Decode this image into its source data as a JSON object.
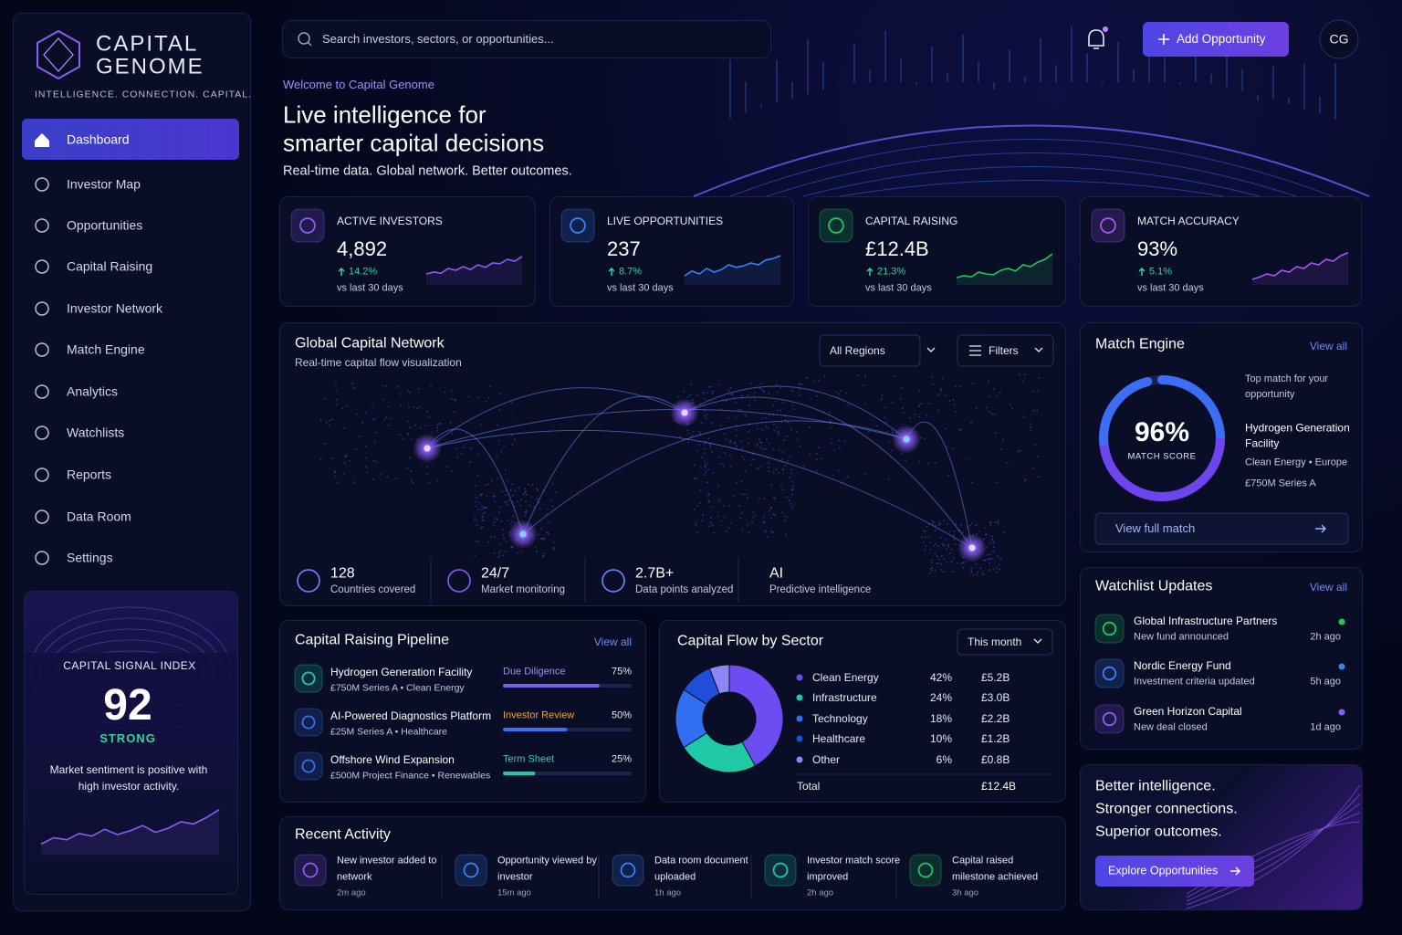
{
  "brand": {
    "name_top": "CAPITAL",
    "name_bottom": "GENOME",
    "tagline": "INTELLIGENCE. CONNECTION. CAPITAL."
  },
  "nav": [
    {
      "label": "Dashboard",
      "active": true
    },
    {
      "label": "Investor Map",
      "active": false
    },
    {
      "label": "Opportunities",
      "active": false
    },
    {
      "label": "Capital Raising",
      "active": false
    },
    {
      "label": "Investor Network",
      "active": false
    },
    {
      "label": "Match Engine",
      "active": false
    },
    {
      "label": "Analytics",
      "active": false
    },
    {
      "label": "Watchlists",
      "active": false
    },
    {
      "label": "Reports",
      "active": false
    },
    {
      "label": "Data Room",
      "active": false
    },
    {
      "label": "Settings",
      "active": false
    }
  ],
  "signal_index": {
    "title": "CAPITAL SIGNAL INDEX",
    "value": "92",
    "status": "STRONG",
    "text": "Market sentiment is positive with high investor activity.",
    "trend": [
      20,
      32,
      28,
      40,
      35,
      48,
      38,
      45,
      55,
      42,
      50,
      62,
      58,
      70,
      85
    ]
  },
  "top_bar": {
    "search_placeholder": "Search investors, sectors, or opportunities...",
    "add_button": "Add Opportunity",
    "avatar": "CG"
  },
  "hero": {
    "kicker": "Welcome to Capital Genome",
    "title_top": "Live intelligence for",
    "title_bottom": "smarter capital decisions",
    "subtitle": "Real-time data. Global network. Better outcomes."
  },
  "kpis": [
    {
      "label": "ACTIVE INVESTORS",
      "value": "4,892",
      "change": "14.2%",
      "period": "vs last 30 days",
      "color": "#8b5cf6",
      "trend": [
        30,
        35,
        32,
        45,
        40,
        50,
        42,
        55,
        48,
        60,
        58,
        70,
        65,
        78
      ]
    },
    {
      "label": "LIVE OPPORTUNITIES",
      "value": "237",
      "change": "8.7%",
      "period": "vs last 30 days",
      "color": "#3b82f6",
      "trend": [
        25,
        38,
        30,
        45,
        35,
        42,
        55,
        48,
        52,
        60,
        55,
        68,
        72,
        80
      ]
    },
    {
      "label": "CAPITAL RAISING",
      "value": "£12.4B",
      "change": "21.3%",
      "period": "vs last 30 days",
      "color": "#22c55e",
      "trend": [
        20,
        25,
        22,
        35,
        30,
        28,
        40,
        45,
        38,
        55,
        50,
        62,
        70,
        85
      ]
    },
    {
      "label": "MATCH ACCURACY",
      "value": "93%",
      "change": "5.1%",
      "period": "vs last 30 days",
      "color": "#a855f7",
      "trend": [
        15,
        22,
        30,
        25,
        40,
        35,
        50,
        45,
        60,
        55,
        70,
        65,
        80,
        88
      ]
    }
  ],
  "network": {
    "title": "Global Capital Network",
    "subtitle": "Real-time capital flow visualization",
    "region_filter": "All Regions",
    "filters": "Filters",
    "stats": [
      {
        "value": "128",
        "label": "Countries covered"
      },
      {
        "value": "24/7",
        "label": "Market monitoring"
      },
      {
        "value": "2.7B+",
        "label": "Data points analyzed"
      },
      {
        "value": "AI",
        "label": "Predictive intelligence"
      }
    ]
  },
  "match_engine": {
    "title": "Match Engine",
    "view_all": "View all",
    "score": 96,
    "score_label": "96%",
    "score_caption": "MATCH SCORE",
    "intro": "Top match for your opportunity",
    "match_name": "Hydrogen Generation Facility",
    "match_sector": "Clean Energy • Europe",
    "match_round": "£750M Series A",
    "button": "View full match"
  },
  "watchlist": {
    "title": "Watchlist Updates",
    "view_all": "View all",
    "items": [
      {
        "name": "Global Infrastructure Partners",
        "detail": "New fund announced",
        "time": "2h ago",
        "color": "#22c55e"
      },
      {
        "name": "Nordic Energy Fund",
        "detail": "Investment criteria updated",
        "time": "5h ago",
        "color": "#3b82f6"
      },
      {
        "name": "Green Horizon Capital",
        "detail": "New deal closed",
        "time": "1d ago",
        "color": "#8b5cf6"
      }
    ]
  },
  "pipeline": {
    "title": "Capital Raising Pipeline",
    "view_all": "View all",
    "items": [
      {
        "name": "Hydrogen Generation Facility",
        "detail": "£750M Series A • Clean Energy",
        "stage": "Due Diligence",
        "stage_color": "#a78bfa",
        "progress": 75,
        "progress_label": "75%",
        "color": "#7c5cf5"
      },
      {
        "name": "AI-Powered Diagnostics Platform",
        "detail": "£25M Series A • Healthcare",
        "stage": "Investor Review",
        "stage_color": "#f5a623",
        "progress": 50,
        "progress_label": "50%",
        "color": "#3b6ef5"
      },
      {
        "name": "Offshore Wind Expansion",
        "detail": "£500M Project Finance • Renewables",
        "stage": "Term Sheet",
        "stage_color": "#2dd4bf",
        "progress": 25,
        "progress_label": "25%",
        "color": "#20c9a6"
      }
    ]
  },
  "sector_flow": {
    "title": "Capital Flow by Sector",
    "period": "This month",
    "sectors": [
      {
        "name": "Clean Energy",
        "share": 42,
        "share_label": "42%",
        "amount": "£5.2B",
        "color": "#6d4df2"
      },
      {
        "name": "Infrastructure",
        "share": 24,
        "share_label": "24%",
        "amount": "£3.0B",
        "color": "#20c9a6"
      },
      {
        "name": "Technology",
        "share": 18,
        "share_label": "18%",
        "amount": "£2.2B",
        "color": "#2f6ff0"
      },
      {
        "name": "Healthcare",
        "share": 10,
        "share_label": "10%",
        "amount": "£1.2B",
        "color": "#1d4fd8"
      },
      {
        "name": "Other",
        "share": 6,
        "share_label": "6%",
        "amount": "£0.8B",
        "color": "#8d86f7"
      }
    ],
    "total_label": "Total",
    "total": "£12.4B"
  },
  "activity": {
    "title": "Recent Activity",
    "items": [
      {
        "text": "New investor added to network",
        "time": "2m ago",
        "color": "#8b5cf6"
      },
      {
        "text": "Opportunity viewed by investor",
        "time": "15m ago",
        "color": "#3b82f6"
      },
      {
        "text": "Data room document uploaded",
        "time": "1h ago",
        "color": "#3b82f6"
      },
      {
        "text": "Investor match score improved",
        "time": "2h ago",
        "color": "#20c9a6"
      },
      {
        "text": "Capital raised milestone achieved",
        "time": "3h ago",
        "color": "#22c55e"
      }
    ]
  },
  "promo": {
    "line_1": "Better intelligence.",
    "line_2": "Stronger connections.",
    "line_3": "Superior outcomes.",
    "button": "Explore Opportunities"
  }
}
